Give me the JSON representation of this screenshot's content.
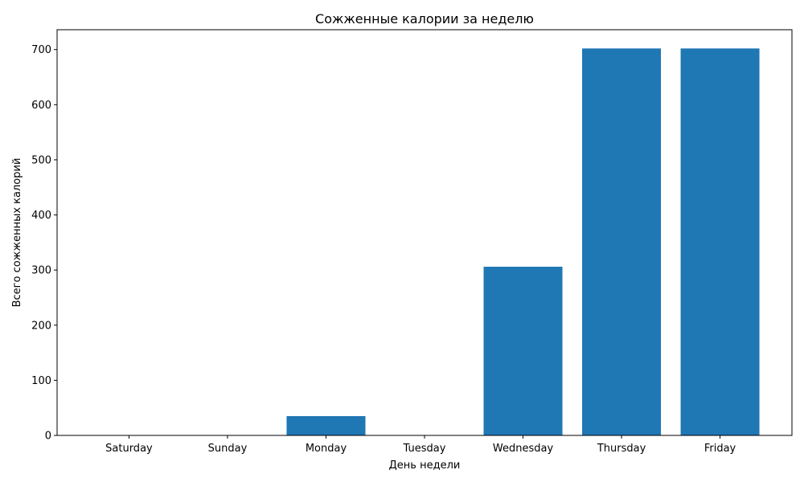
{
  "chart_data": {
    "type": "bar",
    "title": "Сожженные калории за неделю",
    "xlabel": "День недели",
    "ylabel": "Всего сожженных калорий",
    "categories": [
      "Saturday",
      "Sunday",
      "Monday",
      "Tuesday",
      "Wednesday",
      "Thursday",
      "Friday"
    ],
    "values": [
      0,
      0,
      35,
      0,
      306,
      702,
      702
    ],
    "ylim": [
      0,
      736
    ],
    "yticks": [
      0,
      100,
      200,
      300,
      400,
      500,
      600,
      700
    ],
    "grid": false,
    "bar_color": "#1f77b4"
  }
}
